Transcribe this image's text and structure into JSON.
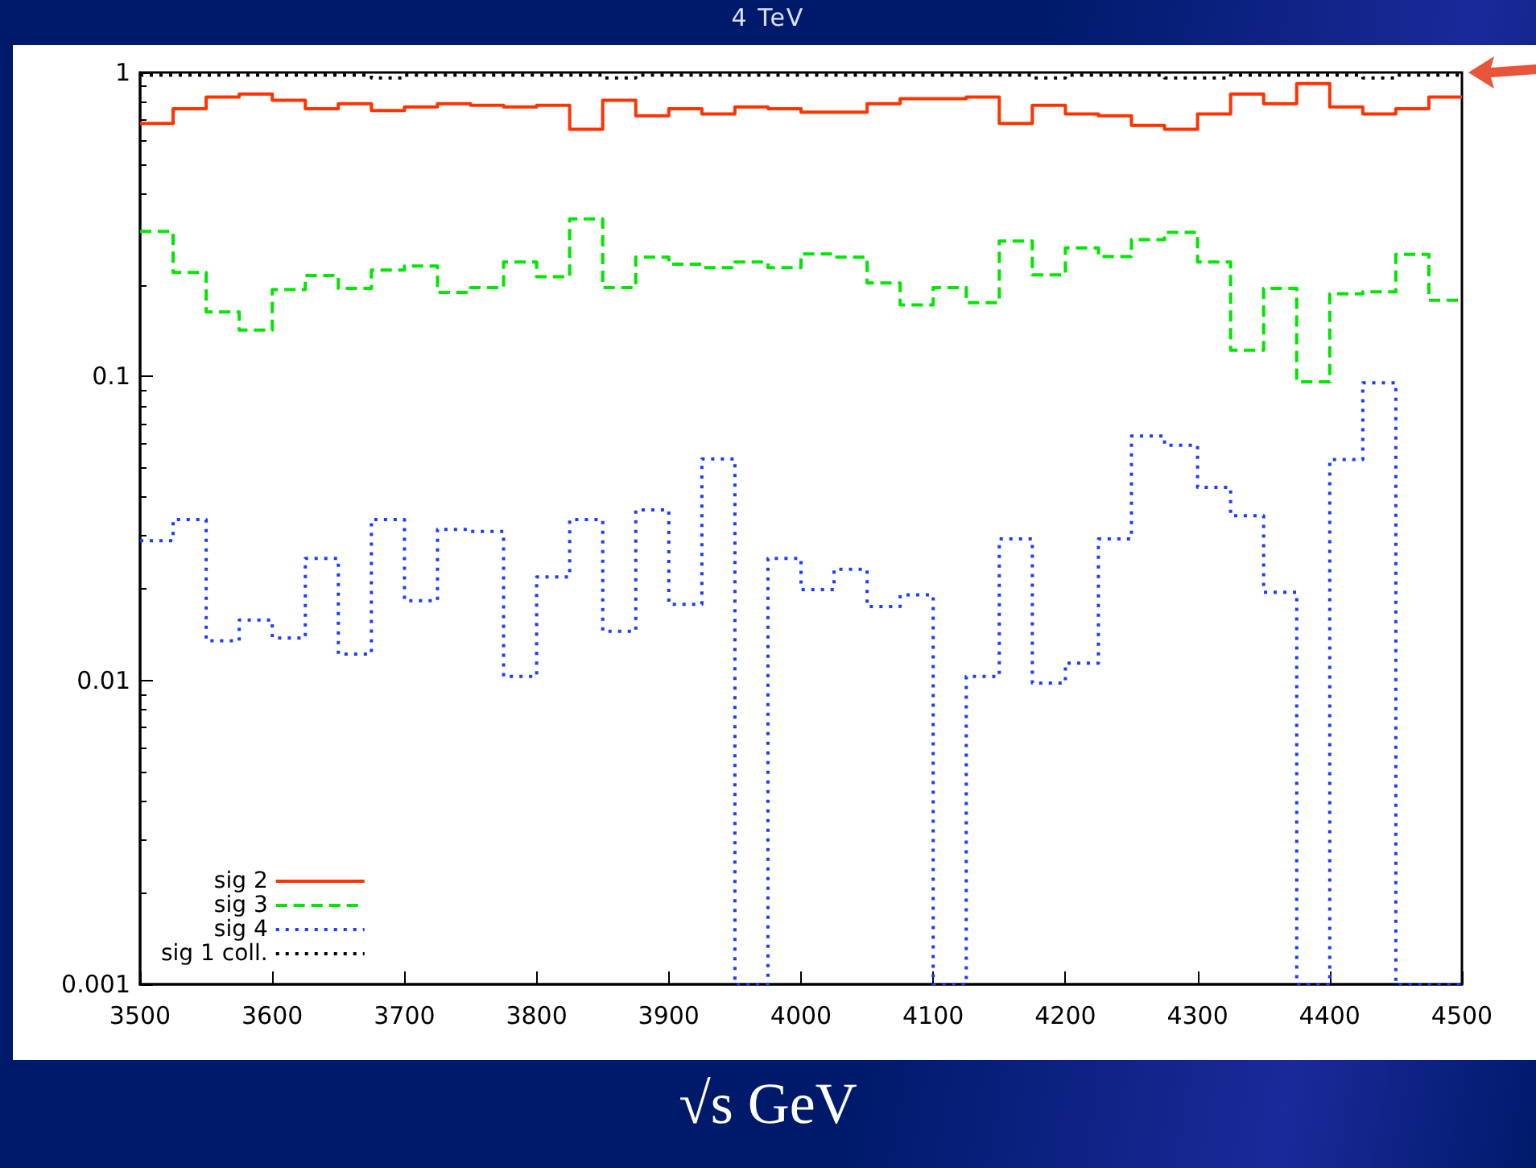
{
  "chart_data": {
    "type": "histogram",
    "title": "4 TeV",
    "xlabel": "√s GeV",
    "bins": [
      3500,
      3525,
      3550,
      3575,
      3600,
      3625,
      3650,
      3675,
      3700,
      3725,
      3750,
      3775,
      3800,
      3825,
      3850,
      3875,
      3900,
      3925,
      3950,
      3975,
      4000,
      4025,
      4050,
      4075,
      4100,
      4125,
      4150,
      4175,
      4200,
      4225,
      4250,
      4275,
      4300,
      4325,
      4350,
      4375,
      4400,
      4425,
      4450,
      4475,
      4500
    ],
    "series": [
      {
        "name": "sig 2",
        "color": "#ff3300",
        "line_style": "solid",
        "values": [
          0.68,
          0.76,
          0.83,
          0.85,
          0.81,
          0.76,
          0.79,
          0.75,
          0.77,
          0.79,
          0.78,
          0.77,
          0.78,
          0.65,
          0.81,
          0.72,
          0.76,
          0.73,
          0.77,
          0.76,
          0.74,
          0.74,
          0.79,
          0.82,
          0.82,
          0.83,
          0.68,
          0.78,
          0.73,
          0.72,
          0.67,
          0.65,
          0.73,
          0.85,
          0.79,
          0.92,
          0.77,
          0.73,
          0.76,
          0.83
        ]
      },
      {
        "name": "sig 3",
        "color": "#00e600",
        "line_style": "dashed",
        "values": [
          0.3,
          0.22,
          0.163,
          0.142,
          0.193,
          0.215,
          0.195,
          0.224,
          0.231,
          0.189,
          0.196,
          0.238,
          0.213,
          0.33,
          0.196,
          0.247,
          0.234,
          0.228,
          0.238,
          0.228,
          0.253,
          0.247,
          0.203,
          0.172,
          0.196,
          0.175,
          0.279,
          0.216,
          0.265,
          0.248,
          0.282,
          0.298,
          0.238,
          0.122,
          0.195,
          0.096,
          0.187,
          0.19,
          0.252,
          0.178
        ]
      },
      {
        "name": "sig 4",
        "color": "#1a3cff",
        "line_style": "dotted",
        "values": [
          0.0288,
          0.0338,
          0.0135,
          0.0158,
          0.0138,
          0.0252,
          0.0122,
          0.0338,
          0.0183,
          0.0314,
          0.0309,
          0.0103,
          0.0219,
          0.0338,
          0.0145,
          0.0364,
          0.0178,
          0.0535,
          0.001,
          0.0252,
          0.0199,
          0.0232,
          0.0175,
          0.0191,
          0.001,
          0.0103,
          0.0292,
          0.0098,
          0.0114,
          0.0292,
          0.0637,
          0.0594,
          0.0432,
          0.0348,
          0.0195,
          0.001,
          0.0533,
          0.0953,
          0.001,
          0.001
        ]
      },
      {
        "name": "sig 1 coll.",
        "color": "#000000",
        "line_style": "dotted",
        "values": [
          0.98,
          0.98,
          0.98,
          0.98,
          0.98,
          0.98,
          0.98,
          0.96,
          0.98,
          0.98,
          0.98,
          0.98,
          0.98,
          0.98,
          0.96,
          0.98,
          0.98,
          0.98,
          0.98,
          0.98,
          0.98,
          0.98,
          0.98,
          0.98,
          0.98,
          0.98,
          0.98,
          0.96,
          0.98,
          0.98,
          0.98,
          0.96,
          0.96,
          0.98,
          0.98,
          0.98,
          0.98,
          0.96,
          0.98,
          0.98
        ]
      }
    ],
    "log": "y",
    "xlim": [
      3500,
      4500
    ],
    "xticks": [
      3500,
      3600,
      3700,
      3800,
      3900,
      4000,
      4100,
      4200,
      4300,
      4400,
      4500
    ],
    "ylim": [
      0.001,
      1
    ],
    "yticks": [
      0.001,
      0.01,
      0.1,
      1
    ],
    "grid": false,
    "legend": "bottom left",
    "marker": "none"
  }
}
